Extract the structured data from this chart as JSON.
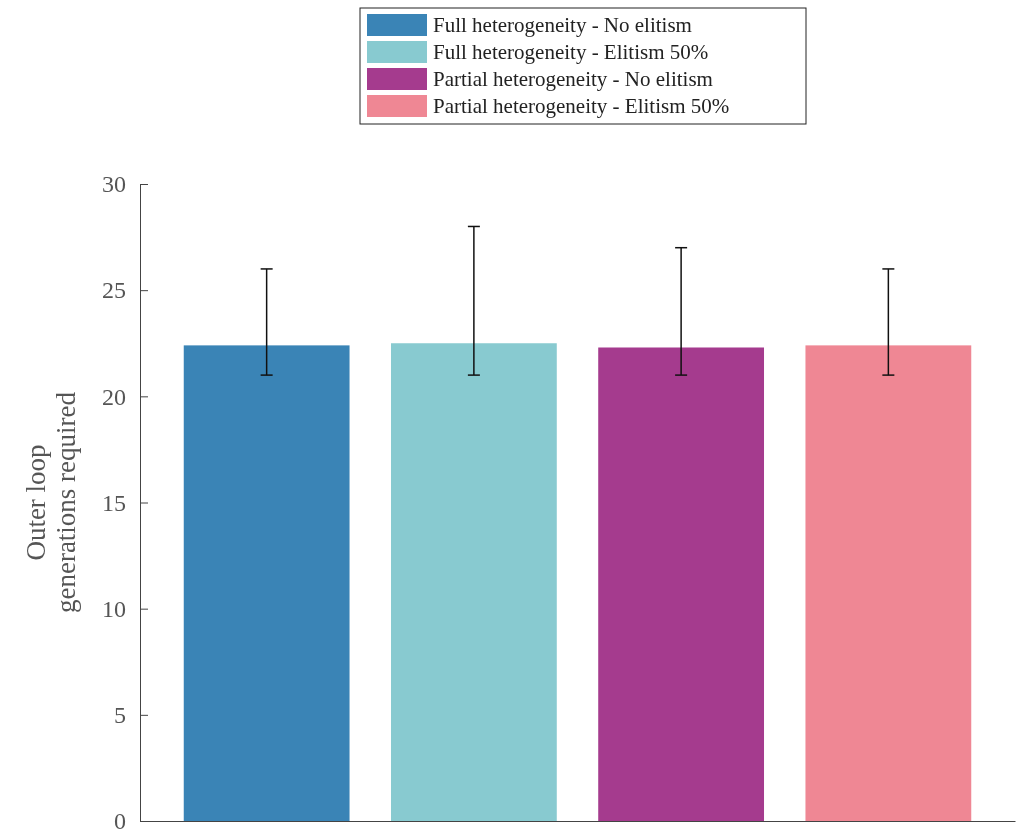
{
  "chart_data": {
    "type": "bar",
    "ylabel": "Outer loop generations required",
    "categories": [
      null
    ],
    "series": [
      {
        "name": "Full heterogeneity - No elitism",
        "color": "#3a84b6",
        "values": [
          22.4
        ],
        "errors": [
          [
            21,
            26
          ]
        ]
      },
      {
        "name": "Full heterogeneity - Elitism 50%",
        "color": "#88cad0",
        "values": [
          22.5
        ],
        "errors": [
          [
            21,
            28
          ]
        ]
      },
      {
        "name": "Partial heterogeneity - No elitism",
        "color": "#a53b8e",
        "values": [
          22.3
        ],
        "errors": [
          [
            21,
            27
          ]
        ]
      },
      {
        "name": "Partial heterogeneity - Elitism 50%",
        "color": "#ef8794",
        "values": [
          22.4
        ],
        "errors": [
          [
            21,
            26
          ]
        ]
      }
    ],
    "ylim": [
      0,
      30
    ],
    "yticks": [
      0,
      5,
      10,
      15,
      20,
      25,
      30
    ],
    "grid": false,
    "legend": "top",
    "tick_labels": "y"
  }
}
